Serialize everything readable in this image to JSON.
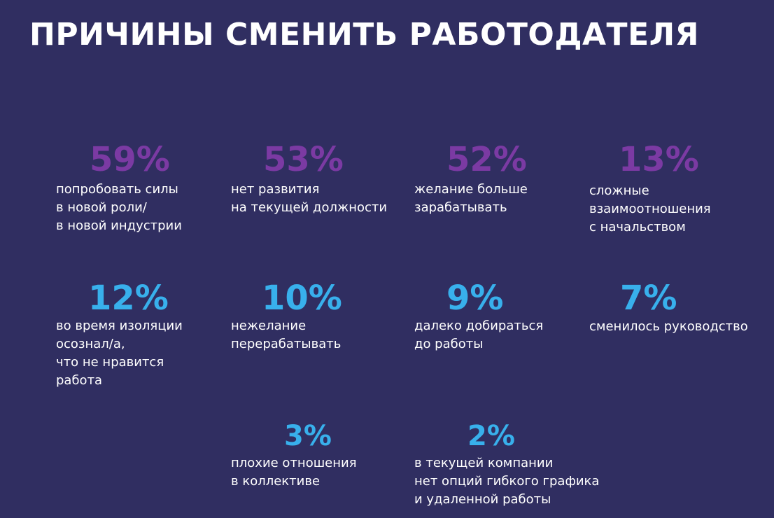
{
  "title": "ПРИЧИНЫ СМЕНИТЬ РАБОТОДАТЕЛЯ",
  "colors": {
    "background": "#302e61",
    "top_row": "#7b3aa3",
    "lower_rows": "#38b0ec",
    "text": "#ffffff"
  },
  "chart_data": {
    "type": "table",
    "title": "ПРИЧИНЫ СМЕНИТЬ РАБОТОДАТЕЛЯ",
    "items": [
      {
        "value": 59,
        "label": "59%",
        "lines": [
          "попробовать силы",
          "в новой роли/",
          "в новой индустрии"
        ]
      },
      {
        "value": 53,
        "label": "53%",
        "lines": [
          "нет развития",
          "на текущей должности"
        ]
      },
      {
        "value": 52,
        "label": "52%",
        "lines": [
          "желание больше",
          "зарабатывать"
        ]
      },
      {
        "value": 13,
        "label": "13%",
        "lines": [
          "сложные",
          "взаимоотношения",
          "с начальством"
        ]
      },
      {
        "value": 12,
        "label": "12%",
        "lines": [
          "во время изоляции",
          "осознал/а,",
          "что не нравится",
          "работа"
        ]
      },
      {
        "value": 10,
        "label": "10%",
        "lines": [
          "нежелание",
          "перерабатывать"
        ]
      },
      {
        "value": 9,
        "label": "9%",
        "lines": [
          "далеко добираться",
          "до работы"
        ]
      },
      {
        "value": 7,
        "label": "7%",
        "lines": [
          "сменилось руководство"
        ]
      },
      {
        "value": 3,
        "label": "3%",
        "lines": [
          "плохие отношения",
          "в коллективе"
        ]
      },
      {
        "value": 2,
        "label": "2%",
        "lines": [
          "в текущей компании",
          "нет опций гибкого графика",
          "и удаленной работы"
        ]
      }
    ]
  }
}
